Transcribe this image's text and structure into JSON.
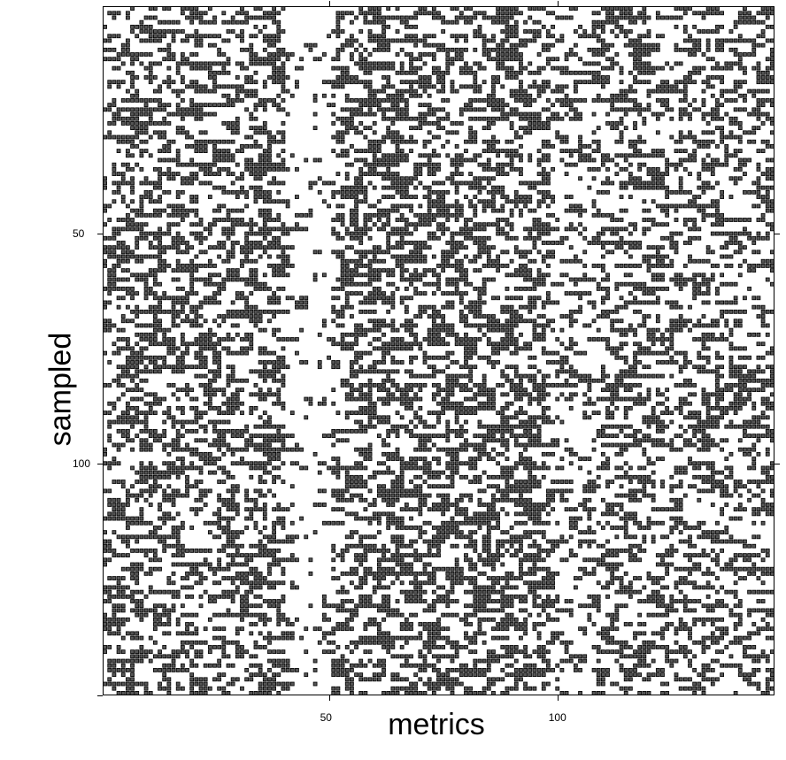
{
  "chart_data": {
    "type": "heatmap",
    "xlabel": "metrics",
    "ylabel": "sampled",
    "n_cols": 147,
    "n_rows": 150,
    "x_ticks": [
      50,
      100
    ],
    "y_ticks": [
      50,
      100
    ],
    "cell_color": "#555555",
    "cell_border": "#000000",
    "density": 0.32,
    "column_density_profile": [
      {
        "from": 1,
        "to": 40,
        "density": 0.34
      },
      {
        "from": 41,
        "to": 50,
        "density": 0.08
      },
      {
        "from": 51,
        "to": 60,
        "density": 0.35
      },
      {
        "from": 61,
        "to": 98,
        "density": 0.36
      },
      {
        "from": 99,
        "to": 107,
        "density": 0.18
      },
      {
        "from": 108,
        "to": 147,
        "density": 0.3
      }
    ]
  }
}
